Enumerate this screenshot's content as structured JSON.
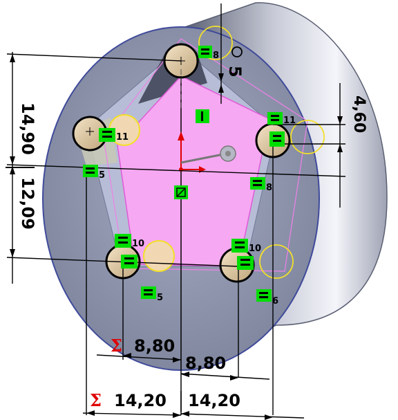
{
  "dimensions": {
    "bolt_diameter": "5",
    "offset_right": "4,60",
    "height_top": "14,90",
    "height_bottom": "12,09",
    "sum_mid_width": "8,80",
    "mid_width": "8,80",
    "sum_outer_width": "14,20",
    "outer_width": "14,20",
    "sigma_symbol": "Σ"
  },
  "relations": {
    "r8": "8",
    "r11a": "11",
    "r11b": "11",
    "r5a": "5",
    "r5b": "5",
    "r10a": "10",
    "r10b": "10",
    "r6": "6"
  },
  "colors": {
    "cylinder_face": "#8c94ad",
    "pentagon_fill": "#f6a8f2",
    "relation_badge": "#00dd00",
    "driven_sigma": "#e00000",
    "circle_outline_yellow": "#f3df2a",
    "boss_fill": "#dcc6a4"
  }
}
